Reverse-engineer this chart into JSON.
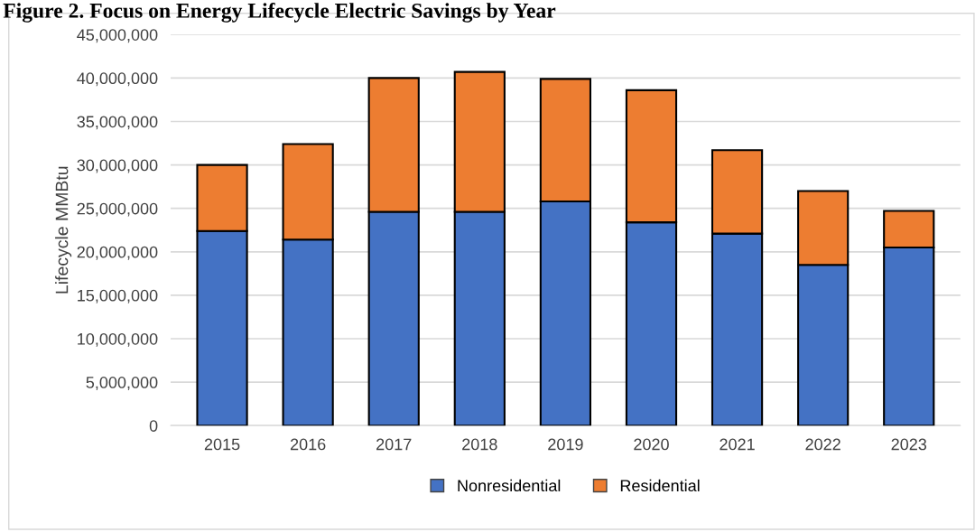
{
  "chart_data": {
    "type": "bar",
    "title": "Figure 2. Focus on Energy Lifecycle Electric Savings by Year",
    "ylabel": "Lifecycle MMBtu",
    "categories": [
      "2015",
      "2016",
      "2017",
      "2018",
      "2019",
      "2020",
      "2021",
      "2022",
      "2023"
    ],
    "series": [
      {
        "name": "Nonresidential",
        "color": "#4472c4",
        "values": [
          22400000,
          21400000,
          24600000,
          24600000,
          25800000,
          23400000,
          22100000,
          18500000,
          20500000
        ]
      },
      {
        "name": "Residential",
        "color": "#ed7d31",
        "values": [
          7600000,
          11000000,
          15400000,
          16100000,
          14100000,
          15200000,
          9600000,
          8500000,
          4200000
        ]
      }
    ],
    "stacked": true,
    "ylim": [
      0,
      45000000
    ],
    "yticks": [
      {
        "value": 0,
        "label": "0"
      },
      {
        "value": 5000000,
        "label": "5,000,000"
      },
      {
        "value": 10000000,
        "label": "10,000,000"
      },
      {
        "value": 15000000,
        "label": "15,000,000"
      },
      {
        "value": 20000000,
        "label": "20,000,000"
      },
      {
        "value": 25000000,
        "label": "25,000,000"
      },
      {
        "value": 30000000,
        "label": "30,000,000"
      },
      {
        "value": 35000000,
        "label": "35,000,000"
      },
      {
        "value": 40000000,
        "label": "40,000,000"
      },
      {
        "value": 45000000,
        "label": "45,000,000"
      }
    ],
    "grid": "y",
    "legend": "bottom"
  }
}
